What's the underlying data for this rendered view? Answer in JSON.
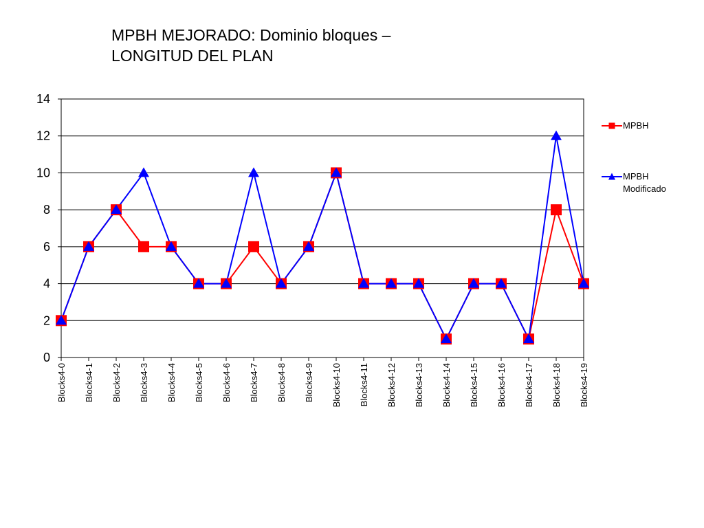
{
  "slide": {
    "title_line1": "MPBH MEJORADO: Dominio bloques –",
    "title_line2": "LONGITUD DEL PLAN"
  },
  "chart_data": {
    "type": "line",
    "categories": [
      "Blocks4-0",
      "Blocks4-1",
      "Blocks4-2",
      "Blocks4-3",
      "Blocks4-4",
      "Blocks4-5",
      "Blocks4-6",
      "Blocks4-7",
      "Blocks4-8",
      "Blocks4-9",
      "Blocks4-10",
      "Blocks4-11",
      "Blocks4-12",
      "Blocks4-13",
      "Blocks4-14",
      "Blocks4-15",
      "Blocks4-16",
      "Blocks4-17",
      "Blocks4-18",
      "Blocks4-19"
    ],
    "series": [
      {
        "name": "MPBH",
        "color": "#ff0000",
        "marker": "square",
        "values": [
          2,
          6,
          8,
          6,
          6,
          4,
          4,
          6,
          4,
          6,
          10,
          4,
          4,
          4,
          1,
          4,
          4,
          1,
          8,
          4
        ]
      },
      {
        "name": "MPBH Modificado",
        "color": "#0000ff",
        "marker": "triangle",
        "values": [
          2,
          6,
          8,
          10,
          6,
          4,
          4,
          10,
          4,
          6,
          10,
          4,
          4,
          4,
          1,
          4,
          4,
          1,
          12,
          4
        ]
      }
    ],
    "ylim": [
      0,
      14
    ],
    "yticks": [
      0,
      2,
      4,
      6,
      8,
      10,
      12,
      14
    ],
    "grid": true,
    "legend_position": "right"
  },
  "legend": {
    "items": [
      {
        "label": "MPBH"
      },
      {
        "label": "MPBH\nModificado"
      }
    ]
  }
}
